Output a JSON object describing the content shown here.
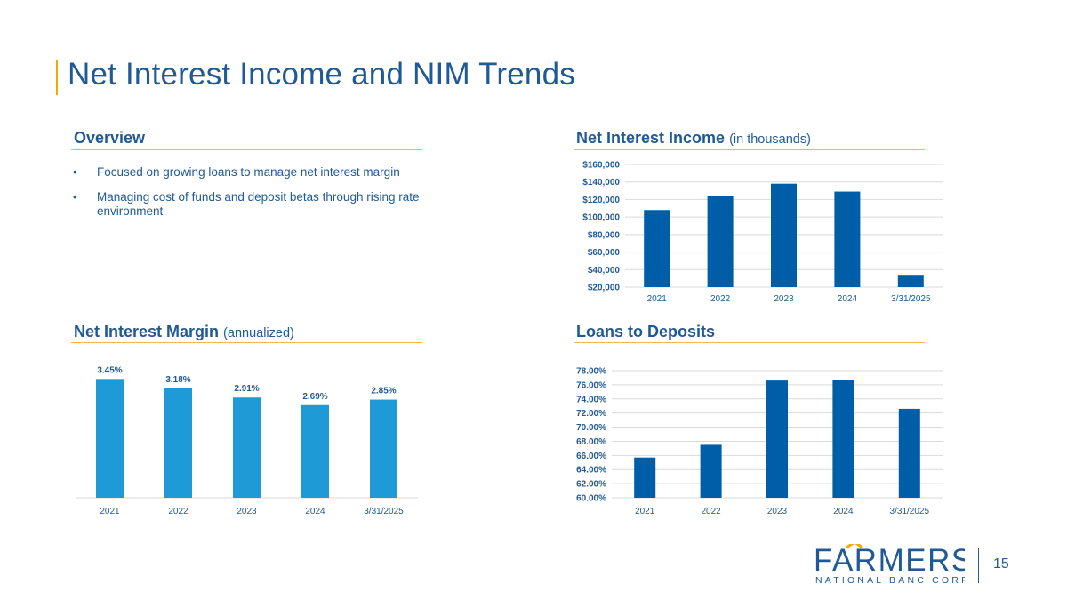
{
  "page": {
    "title": "Net Interest Income and NIM Trends",
    "page_number": "15"
  },
  "colors": {
    "primary": "#1f5a96",
    "bar_dark": "#005da8",
    "bar_light": "#1e9ad6",
    "accent": "#f2a900"
  },
  "overview": {
    "heading": "Overview",
    "bullets": [
      "Focused on growing loans to manage net interest margin",
      "Managing cost of funds and deposit betas through rising rate environment"
    ]
  },
  "logo": {
    "icon": "farmers-logo",
    "word": "FARMERS",
    "tagline": "NATIONAL BANC CORP."
  },
  "chart_data": [
    {
      "id": "nii",
      "type": "bar",
      "title": "Net Interest Income",
      "subtitle": "(in thousands)",
      "categories": [
        "2021",
        "2022",
        "2023",
        "2024",
        "3/31/2025"
      ],
      "values": [
        108000,
        124000,
        138000,
        129000,
        34000
      ],
      "ylim": [
        20000,
        160000
      ],
      "yticks": [
        20000,
        40000,
        60000,
        80000,
        100000,
        120000,
        140000,
        160000
      ],
      "ytick_labels": [
        "$20,000",
        "$40,000",
        "$60,000",
        "$80,000",
        "$100,000",
        "$120,000",
        "$140,000",
        "$160,000"
      ],
      "grid": true
    },
    {
      "id": "nim",
      "type": "bar",
      "title": "Net Interest Margin",
      "subtitle": "(annualized)",
      "categories": [
        "2021",
        "2022",
        "2023",
        "2024",
        "3/31/2025"
      ],
      "values": [
        3.45,
        3.18,
        2.91,
        2.69,
        2.85
      ],
      "data_labels": [
        "3.45%",
        "3.18%",
        "2.91%",
        "2.69%",
        "2.85%"
      ],
      "ylim": [
        0,
        4.0
      ],
      "grid": false
    },
    {
      "id": "ltd",
      "type": "bar",
      "title": "Loans to Deposits",
      "subtitle": "",
      "categories": [
        "2021",
        "2022",
        "2023",
        "2024",
        "3/31/2025"
      ],
      "values": [
        65.7,
        67.5,
        76.6,
        76.7,
        72.6
      ],
      "ylim": [
        60,
        78
      ],
      "yticks": [
        60,
        62,
        64,
        66,
        68,
        70,
        72,
        74,
        76,
        78
      ],
      "ytick_labels": [
        "60.00%",
        "62.00%",
        "64.00%",
        "66.00%",
        "68.00%",
        "70.00%",
        "72.00%",
        "74.00%",
        "76.00%",
        "78.00%"
      ],
      "grid": true
    }
  ]
}
